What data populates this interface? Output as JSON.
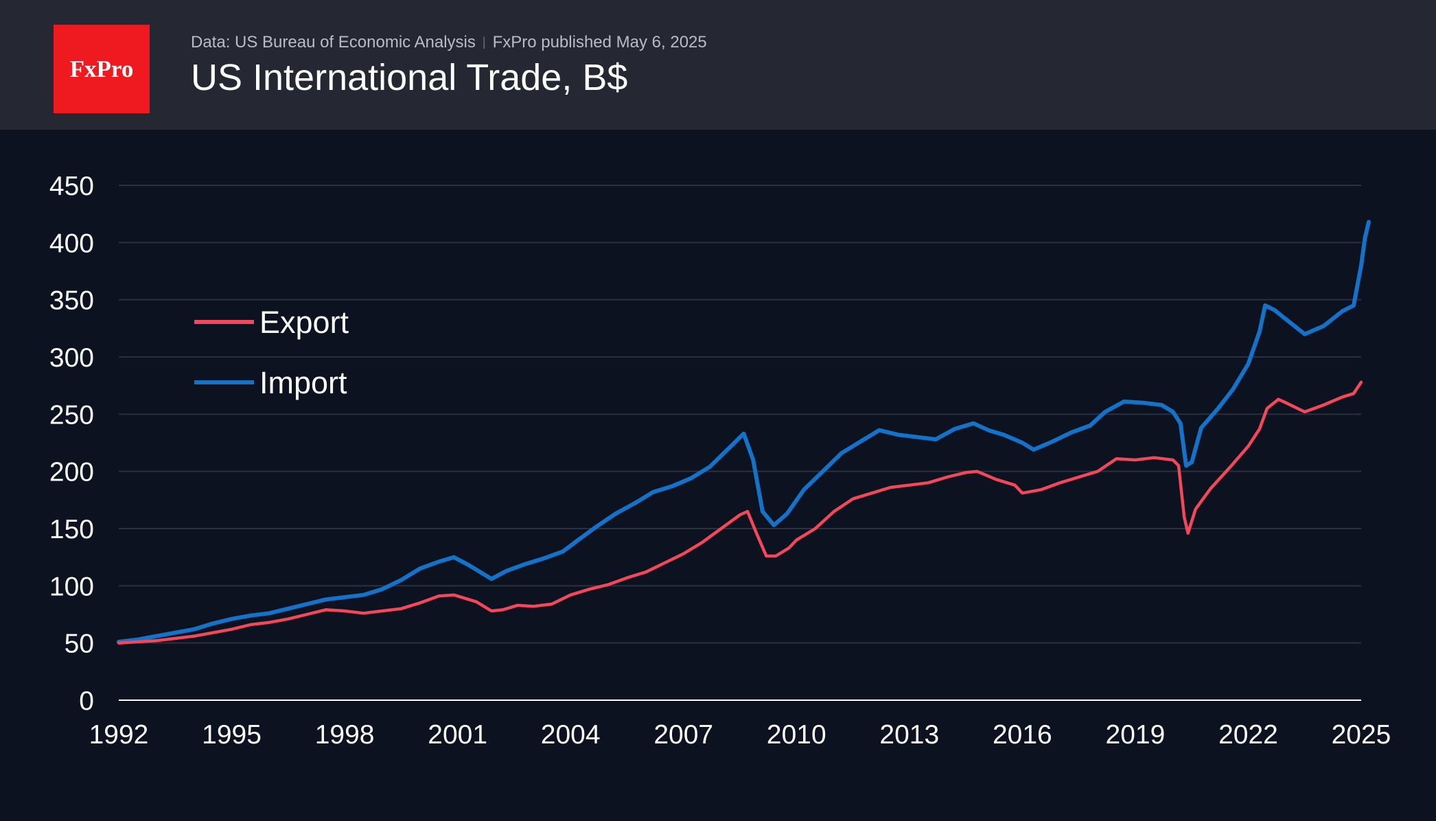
{
  "header": {
    "logo_text": "FxPro",
    "source_text": "Data: US Bureau of Economic Analysis",
    "published_text": "FxPro published May 6, 2025",
    "title": "US International Trade, B$"
  },
  "colors": {
    "background": "#0c1220",
    "header_bg": "#252833",
    "logo_bg": "#ef1a1f",
    "export": "#f4485a",
    "import": "#1472c8",
    "grid": "#2a3140"
  },
  "chart_data": {
    "type": "line",
    "title": "US International Trade, B$",
    "xlabel": "",
    "ylabel": "",
    "xlim": [
      1992,
      2025
    ],
    "ylim": [
      0,
      450
    ],
    "xticks": [
      1992,
      1995,
      1998,
      2001,
      2004,
      2007,
      2010,
      2013,
      2016,
      2019,
      2022,
      2025
    ],
    "yticks": [
      0,
      50,
      100,
      150,
      200,
      250,
      300,
      350,
      400,
      450
    ],
    "grid": true,
    "legend_position": "upper-left",
    "series": [
      {
        "name": "Export",
        "color": "#f4485a",
        "points": [
          [
            1992.0,
            50
          ],
          [
            1992.5,
            51
          ],
          [
            1993.0,
            52
          ],
          [
            1993.5,
            54
          ],
          [
            1994.0,
            56
          ],
          [
            1994.5,
            59
          ],
          [
            1995.0,
            62
          ],
          [
            1995.5,
            66
          ],
          [
            1996.0,
            68
          ],
          [
            1996.5,
            71
          ],
          [
            1997.0,
            75
          ],
          [
            1997.5,
            79
          ],
          [
            1998.0,
            78
          ],
          [
            1998.5,
            76
          ],
          [
            1999.0,
            78
          ],
          [
            1999.5,
            80
          ],
          [
            2000.0,
            85
          ],
          [
            2000.5,
            91
          ],
          [
            2000.9,
            92
          ],
          [
            2001.5,
            86
          ],
          [
            2001.9,
            78
          ],
          [
            2002.2,
            79
          ],
          [
            2002.6,
            83
          ],
          [
            2003.0,
            82
          ],
          [
            2003.5,
            84
          ],
          [
            2004.0,
            92
          ],
          [
            2004.5,
            97
          ],
          [
            2005.0,
            101
          ],
          [
            2005.5,
            107
          ],
          [
            2006.0,
            112
          ],
          [
            2006.5,
            120
          ],
          [
            2007.0,
            128
          ],
          [
            2007.5,
            138
          ],
          [
            2008.0,
            150
          ],
          [
            2008.5,
            162
          ],
          [
            2008.7,
            165
          ],
          [
            2008.95,
            145
          ],
          [
            2009.2,
            126
          ],
          [
            2009.45,
            126
          ],
          [
            2009.8,
            133
          ],
          [
            2010.0,
            140
          ],
          [
            2010.5,
            150
          ],
          [
            2011.0,
            165
          ],
          [
            2011.5,
            176
          ],
          [
            2012.0,
            181
          ],
          [
            2012.5,
            186
          ],
          [
            2013.0,
            188
          ],
          [
            2013.5,
            190
          ],
          [
            2014.0,
            195
          ],
          [
            2014.5,
            199
          ],
          [
            2014.8,
            200
          ],
          [
            2015.3,
            193
          ],
          [
            2015.8,
            188
          ],
          [
            2016.0,
            181
          ],
          [
            2016.5,
            184
          ],
          [
            2017.0,
            190
          ],
          [
            2017.5,
            195
          ],
          [
            2018.0,
            200
          ],
          [
            2018.5,
            211
          ],
          [
            2019.0,
            210
          ],
          [
            2019.5,
            212
          ],
          [
            2020.0,
            210
          ],
          [
            2020.15,
            205
          ],
          [
            2020.3,
            160
          ],
          [
            2020.4,
            146
          ],
          [
            2020.6,
            167
          ],
          [
            2021.0,
            185
          ],
          [
            2021.5,
            203
          ],
          [
            2022.0,
            222
          ],
          [
            2022.3,
            237
          ],
          [
            2022.5,
            255
          ],
          [
            2022.8,
            263
          ],
          [
            2023.0,
            260
          ],
          [
            2023.5,
            252
          ],
          [
            2024.0,
            258
          ],
          [
            2024.5,
            265
          ],
          [
            2024.8,
            268
          ],
          [
            2025.0,
            278
          ]
        ]
      },
      {
        "name": "Import",
        "color": "#1472c8",
        "points": [
          [
            1992.0,
            51
          ],
          [
            1992.5,
            53
          ],
          [
            1993.0,
            56
          ],
          [
            1993.5,
            59
          ],
          [
            1994.0,
            62
          ],
          [
            1994.5,
            67
          ],
          [
            1995.0,
            71
          ],
          [
            1995.5,
            74
          ],
          [
            1996.0,
            76
          ],
          [
            1996.5,
            80
          ],
          [
            1997.0,
            84
          ],
          [
            1997.5,
            88
          ],
          [
            1998.0,
            90
          ],
          [
            1998.5,
            92
          ],
          [
            1999.0,
            97
          ],
          [
            1999.5,
            105
          ],
          [
            2000.0,
            115
          ],
          [
            2000.5,
            121
          ],
          [
            2000.9,
            125
          ],
          [
            2001.3,
            118
          ],
          [
            2001.9,
            106
          ],
          [
            2002.3,
            113
          ],
          [
            2002.8,
            119
          ],
          [
            2003.3,
            124
          ],
          [
            2003.8,
            130
          ],
          [
            2004.2,
            140
          ],
          [
            2004.7,
            152
          ],
          [
            2005.2,
            163
          ],
          [
            2005.7,
            172
          ],
          [
            2006.2,
            182
          ],
          [
            2006.7,
            187
          ],
          [
            2007.2,
            194
          ],
          [
            2007.7,
            204
          ],
          [
            2008.2,
            220
          ],
          [
            2008.6,
            233
          ],
          [
            2008.85,
            210
          ],
          [
            2009.1,
            165
          ],
          [
            2009.4,
            153
          ],
          [
            2009.75,
            163
          ],
          [
            2010.2,
            184
          ],
          [
            2010.7,
            200
          ],
          [
            2011.2,
            216
          ],
          [
            2011.7,
            226
          ],
          [
            2012.2,
            236
          ],
          [
            2012.7,
            232
          ],
          [
            2013.2,
            230
          ],
          [
            2013.7,
            228
          ],
          [
            2014.2,
            237
          ],
          [
            2014.7,
            242
          ],
          [
            2015.1,
            236
          ],
          [
            2015.5,
            232
          ],
          [
            2016.0,
            225
          ],
          [
            2016.3,
            219
          ],
          [
            2016.8,
            226
          ],
          [
            2017.3,
            234
          ],
          [
            2017.8,
            240
          ],
          [
            2018.2,
            252
          ],
          [
            2018.7,
            261
          ],
          [
            2019.2,
            260
          ],
          [
            2019.7,
            258
          ],
          [
            2020.0,
            252
          ],
          [
            2020.2,
            242
          ],
          [
            2020.35,
            205
          ],
          [
            2020.5,
            208
          ],
          [
            2020.75,
            238
          ],
          [
            2021.2,
            255
          ],
          [
            2021.6,
            272
          ],
          [
            2022.0,
            294
          ],
          [
            2022.3,
            322
          ],
          [
            2022.45,
            345
          ],
          [
            2022.7,
            341
          ],
          [
            2023.0,
            333
          ],
          [
            2023.5,
            320
          ],
          [
            2024.0,
            327
          ],
          [
            2024.5,
            340
          ],
          [
            2024.8,
            345
          ],
          [
            2025.0,
            380
          ],
          [
            2025.1,
            404
          ],
          [
            2025.2,
            418
          ]
        ]
      }
    ]
  }
}
